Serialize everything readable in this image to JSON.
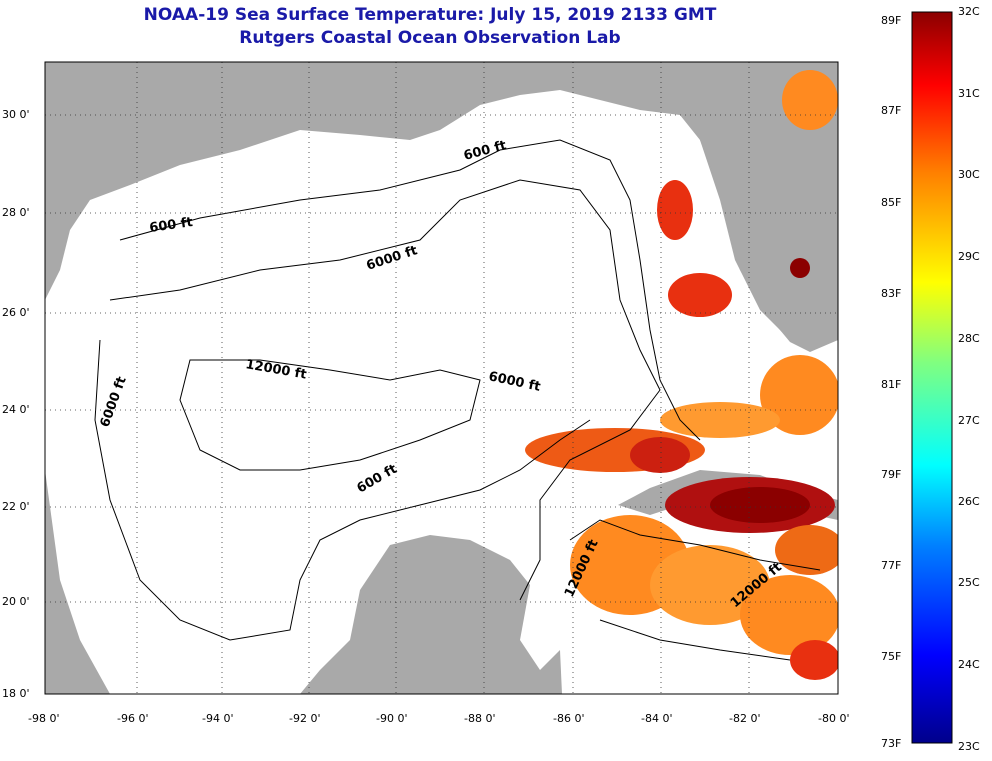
{
  "title": {
    "line1": "NOAA-19 Sea Surface Temperature:  July 15, 2019 2133 GMT",
    "line2": "Rutgers Coastal Ocean Observation Lab"
  },
  "map": {
    "lat_ticks": [
      "30 0'",
      "28 0'",
      "26 0'",
      "24 0'",
      "22 0'",
      "20 0'",
      "18 0'"
    ],
    "lon_ticks": [
      "-98 0'",
      "-96 0'",
      "-94 0'",
      "-92 0'",
      "-90 0'",
      "-88 0'",
      "-86 0'",
      "-84 0'",
      "-82 0'",
      "-80 0'"
    ],
    "contour_labels": [
      "600 ft",
      "600 ft",
      "6000 ft",
      "12000 ft",
      "6000 ft",
      "6000 ft",
      "600 ft",
      "12000 ft",
      "12000 ft"
    ],
    "land_color": "#a9a9a9",
    "ocean_color": "#ffffff"
  },
  "colorbar": {
    "fahrenheit": [
      "89F",
      "87F",
      "85F",
      "83F",
      "81F",
      "79F",
      "77F",
      "75F",
      "73F"
    ],
    "celsius": [
      "32C",
      "31C",
      "30C",
      "29C",
      "28C",
      "27C",
      "26C",
      "25C",
      "24C",
      "23C"
    ],
    "colors": [
      "#00008b",
      "#0000ff",
      "#0080ff",
      "#00ffff",
      "#80ff80",
      "#ffff00",
      "#ff8000",
      "#ff0000",
      "#8b0000"
    ]
  }
}
